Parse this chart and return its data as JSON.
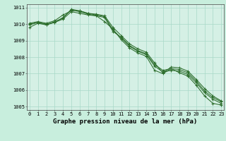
{
  "title": "Graphe pression niveau de la mer (hPa)",
  "bg_color": "#c8eedd",
  "plot_bg_color": "#d5f0e5",
  "grid_color": "#a8d8c8",
  "line_color": "#2d6e2d",
  "series": [
    [
      1010.0,
      1010.1,
      1010.0,
      1010.1,
      1010.4,
      1010.85,
      1010.75,
      1010.6,
      1010.5,
      1010.15,
      1009.7,
      1009.05,
      1008.55,
      1008.25,
      1008.05,
      1007.2,
      1007.0,
      1007.3,
      1007.05,
      1006.85,
      1006.3,
      1005.65,
      1005.2,
      1005.1
    ],
    [
      1009.95,
      1010.1,
      1009.95,
      1010.15,
      1010.35,
      1010.9,
      1010.8,
      1010.65,
      1010.55,
      1010.45,
      1009.65,
      1009.15,
      1008.65,
      1008.35,
      1008.15,
      1007.45,
      1007.1,
      1007.2,
      1007.15,
      1006.95,
      1006.45,
      1005.85,
      1005.45,
      1005.2
    ],
    [
      1009.8,
      1010.05,
      1009.95,
      1010.1,
      1010.3,
      1010.75,
      1010.65,
      1010.55,
      1010.5,
      1010.4,
      1009.55,
      1009.2,
      1008.7,
      1008.4,
      1008.2,
      1007.55,
      1007.2,
      1007.3,
      1007.25,
      1007.05,
      1006.55,
      1005.95,
      1005.55,
      1005.3
    ],
    [
      1010.05,
      1010.15,
      1010.05,
      1010.2,
      1010.55,
      1010.8,
      1010.8,
      1010.65,
      1010.6,
      1010.5,
      1009.8,
      1009.3,
      1008.8,
      1008.5,
      1008.3,
      1007.65,
      1007.05,
      1007.4,
      1007.35,
      1007.15,
      1006.65,
      1006.1,
      1005.65,
      1005.35
    ]
  ],
  "ylim": [
    1004.8,
    1011.2
  ],
  "yticks": [
    1005,
    1006,
    1007,
    1008,
    1009,
    1010,
    1011
  ],
  "xticks": [
    0,
    1,
    2,
    3,
    4,
    5,
    6,
    7,
    8,
    9,
    10,
    11,
    12,
    13,
    14,
    15,
    16,
    17,
    18,
    19,
    20,
    21,
    22,
    23
  ],
  "tick_fontsize": 5.0,
  "xlabel_fontsize": 6.5,
  "linewidth": 0.75,
  "markersize": 3.0,
  "markeredgewidth": 0.75
}
